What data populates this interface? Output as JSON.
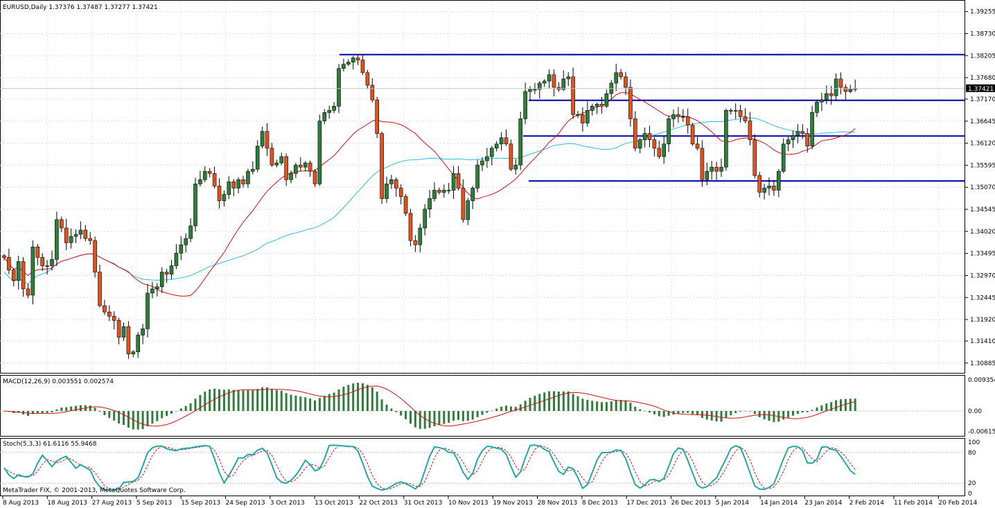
{
  "main": {
    "header": "EURUSD,Daily  1.37376 1.37487 1.37277 1.37421",
    "price_ticks": [
      "1.39255",
      "1.38730",
      "1.38205",
      "1.37680",
      "1.37170",
      "1.36645",
      "1.36120",
      "1.35595",
      "1.35070",
      "1.34545",
      "1.34020",
      "1.33495",
      "1.32970",
      "1.32445",
      "1.31920",
      "1.31410",
      "1.30885"
    ],
    "current_price": "1.37421",
    "date_ticks": [
      "8 Aug 2013",
      "18 Aug 2013",
      "27 Aug 2013",
      "5 Sep 2013",
      "15 Sep 2013",
      "24 Sep 2013",
      "3 Oct 2013",
      "13 Oct 2013",
      "22 Oct 2013",
      "31 Oct 2013",
      "10 Nov 2013",
      "19 Nov 2013",
      "28 Nov 2013",
      "8 Dec 2013",
      "17 Dec 2013",
      "26 Dec 2013",
      "5 Jan 2014",
      "14 Jan 2014",
      "23 Jan 2014",
      "2 Feb 2014",
      "11 Feb 2014",
      "20 Feb 2014"
    ]
  },
  "macd": {
    "header": "MACD(12,26,9) 0.003551 0.002574",
    "ticks": [
      "0.009354",
      "0.00",
      "-0.006153"
    ]
  },
  "stoch": {
    "header": "Stoch(5,3,3) 61.6116 55.9468",
    "ticks": [
      "100",
      "80",
      "20",
      "0"
    ]
  },
  "footer": "MetaTrader FIX, © 2001-2013, MetaQuotes Software Corp.",
  "colors": {
    "bull": "#2e7d3a",
    "bear": "#e2521f",
    "ma_fast": "#cc1111",
    "ma_slow": "#33bbdd",
    "level_line": "#0000aa",
    "macd_hist": "#2e7d3a",
    "signal": "#cc1111",
    "stoch_main": "#22a7a7",
    "stoch_signal": "#cc1111"
  },
  "chart_data": {
    "type": "candlestick",
    "symbol": "EURUSD",
    "timeframe": "Daily",
    "ohlc_last": {
      "open": 1.37376,
      "high": 1.37487,
      "low": 1.37277,
      "close": 1.37421
    },
    "ylim": [
      1.3065,
      1.395
    ],
    "close_series": [
      1.334,
      1.331,
      1.3285,
      1.333,
      1.3265,
      1.325,
      1.3365,
      1.334,
      1.332,
      1.332,
      1.3335,
      1.343,
      1.341,
      1.3375,
      1.339,
      1.3395,
      1.3405,
      1.3385,
      1.338,
      1.3305,
      1.3225,
      1.321,
      1.32,
      1.319,
      1.315,
      1.3175,
      1.311,
      1.3115,
      1.3155,
      1.317,
      1.3255,
      1.3265,
      1.327,
      1.3305,
      1.33,
      1.332,
      1.335,
      1.337,
      1.3385,
      1.3415,
      1.3515,
      1.3525,
      1.3545,
      1.354,
      1.351,
      1.3475,
      1.349,
      1.352,
      1.3505,
      1.3525,
      1.3515,
      1.3545,
      1.355,
      1.3605,
      1.364,
      1.36,
      1.356,
      1.3565,
      1.358,
      1.3525,
      1.354,
      1.356,
      1.3555,
      1.3565,
      1.3545,
      1.3515,
      1.3665,
      1.3685,
      1.369,
      1.37,
      1.379,
      1.38,
      1.3805,
      1.3815,
      1.381,
      1.378,
      1.375,
      1.3715,
      1.3635,
      1.348,
      1.3515,
      1.3525,
      1.3505,
      1.3485,
      1.3445,
      1.338,
      1.337,
      1.341,
      1.3455,
      1.348,
      1.35,
      1.3495,
      1.35,
      1.35,
      1.354,
      1.3505,
      1.343,
      1.3475,
      1.3505,
      1.356,
      1.357,
      1.358,
      1.36,
      1.361,
      1.3625,
      1.361,
      1.355,
      1.356,
      1.367,
      1.3735,
      1.374,
      1.374,
      1.3755,
      1.376,
      1.3775,
      1.3745,
      1.374,
      1.3765,
      1.377,
      1.368,
      1.368,
      1.366,
      1.369,
      1.37,
      1.3705,
      1.37,
      1.373,
      1.3755,
      1.378,
      1.377,
      1.3745,
      1.367,
      1.36,
      1.362,
      1.3635,
      1.362,
      1.36,
      1.358,
      1.361,
      1.367,
      1.368,
      1.3675,
      1.3675,
      1.3655,
      1.361,
      1.36,
      1.3525,
      1.3545,
      1.3555,
      1.3545,
      1.3555,
      1.369,
      1.369,
      1.369,
      1.3675,
      1.3665,
      1.362,
      1.3535,
      1.3495,
      1.3505,
      1.351,
      1.35,
      1.3545,
      1.361,
      1.362,
      1.363,
      1.364,
      1.3635,
      1.3605,
      1.3685,
      1.371,
      1.3715,
      1.373,
      1.3725,
      1.3765,
      1.3745,
      1.3735,
      1.374,
      1.3742
    ],
    "horizontal_levels": [
      1.3823,
      1.3714,
      1.3629,
      1.3522
    ],
    "indicators": [
      "MA fast (red)",
      "MA slow (cyan)",
      "MACD(12,26,9)",
      "Stoch(5,3,3)"
    ]
  }
}
